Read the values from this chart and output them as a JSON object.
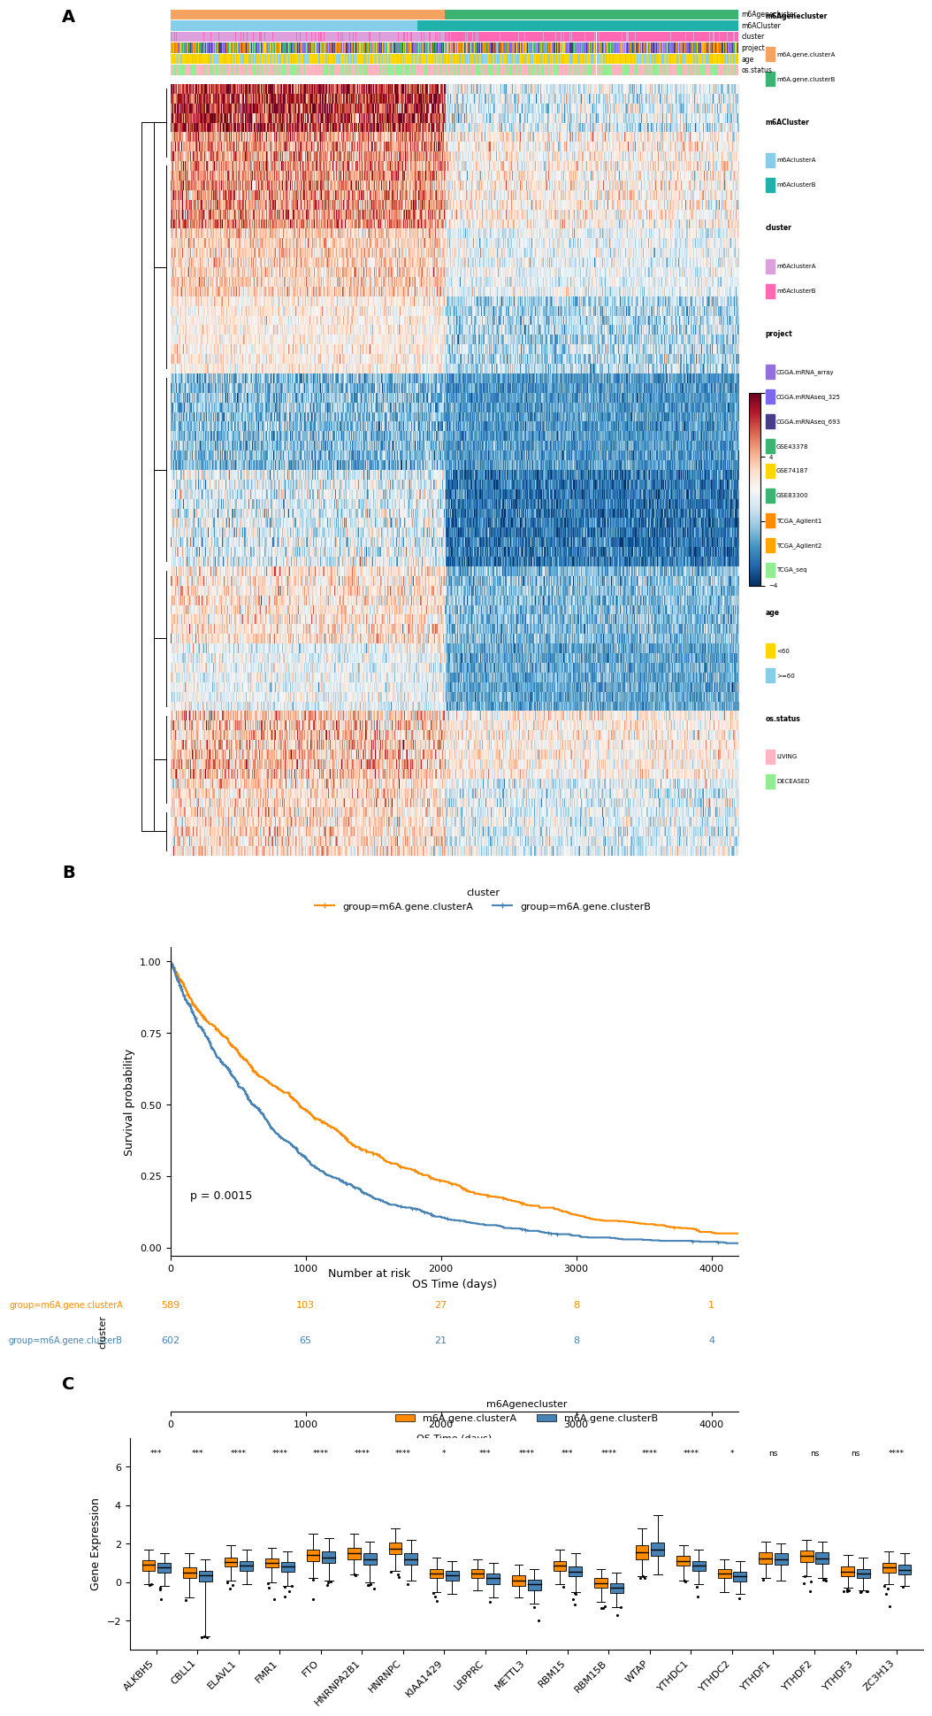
{
  "panel_A": {
    "title": "A",
    "n_genes": 80,
    "n_samplesA": 580,
    "n_samplesB": 620,
    "bar_colors": {
      "m6Agenecluster_A": "#F4A460",
      "m6Agenecluster_B": "#3CB371",
      "m6ACluster_A": "#87CEEB",
      "m6ACluster_B": "#20B2AA",
      "cluster_A": "#DDA0DD",
      "cluster_B": "#FF69B4",
      "age_young": "#FFD700",
      "age_old": "#87CEEB",
      "os_living": "#FFB6C1",
      "os_deceased": "#90EE90"
    },
    "proj_colors": [
      "#9370DB",
      "#7B68EE",
      "#483D8B",
      "#3CB371",
      "#FFD700",
      "#3CB371",
      "#FF8C00",
      "#FFA500",
      "#90EE90"
    ],
    "proj_weights": [
      0.15,
      0.12,
      0.15,
      0.08,
      0.08,
      0.08,
      0.12,
      0.12,
      0.1
    ],
    "legend_m6Agenecluster": [
      [
        "m6A.gene.clusterA",
        "#F4A460"
      ],
      [
        "m6A.gene.clusterB",
        "#3CB371"
      ]
    ],
    "legend_m6ACluster": [
      [
        "m6AclusterA",
        "#87CEEB"
      ],
      [
        "m6AclusterB",
        "#20B2AA"
      ]
    ],
    "legend_cluster": [
      [
        "m6AclusterA",
        "#DDA0DD"
      ],
      [
        "m6AclusterB",
        "#FF69B4"
      ]
    ],
    "legend_project": [
      [
        "CGGA.mRNA_array",
        "#9370DB"
      ],
      [
        "CGGA.mRNAseq_325",
        "#7B68EE"
      ],
      [
        "CGGA.mRNAseq_693",
        "#483D8B"
      ],
      [
        "GSE43378",
        "#3CB371"
      ],
      [
        "GSE74187",
        "#FFD700"
      ],
      [
        "GSE83300",
        "#3CB371"
      ],
      [
        "TCGA_Agilent1",
        "#FF8C00"
      ],
      [
        "TCGA_Agilent2",
        "#FFA500"
      ],
      [
        "TCGA_seq",
        "#90EE90"
      ]
    ],
    "legend_age": [
      [
        "<60",
        "#FFD700"
      ],
      [
        ">=60",
        "#87CEEB"
      ]
    ],
    "legend_os": [
      [
        "LIVING",
        "#FFB6C1"
      ],
      [
        "DECEASED",
        "#90EE90"
      ]
    ],
    "colorbar_min": -4,
    "colorbar_max": 8
  },
  "panel_B": {
    "title": "B",
    "clusterA_color": "#FF8C00",
    "clusterB_color": "#4682B4",
    "legend_title": "cluster",
    "legend_labels": [
      "group=m6A.gene.clusterA",
      "group=m6A.gene.clusterB"
    ],
    "pvalue": "p = 0.0015",
    "xlabel": "OS Time (days)",
    "ylabel": "Survival probability",
    "yticks": [
      0.0,
      0.25,
      0.5,
      0.75,
      1.0
    ],
    "xticks": [
      0,
      1000,
      2000,
      3000,
      4000
    ],
    "risk_table": {
      "title": "Number at risk",
      "xlabel": "OS Time (days)",
      "ylabel": "cluster",
      "groups": [
        "group=m6A.gene.clusterA",
        "group=m6A.gene.clusterB"
      ],
      "times": [
        0,
        1000,
        2000,
        3000,
        4000
      ],
      "numbers_A": [
        589,
        103,
        27,
        8,
        1
      ],
      "numbers_B": [
        602,
        65,
        21,
        8,
        4
      ]
    }
  },
  "panel_C": {
    "title": "C",
    "legend_title": "m6Agenecluster",
    "clusterA_color": "#FF8C00",
    "clusterB_color": "#4682B4",
    "clusterA_label": "m6A.gene.clusterA",
    "clusterB_label": "m6A.gene.clusterB",
    "ylabel": "Gene Expression",
    "genes": [
      "ALKBH5",
      "CBLL1",
      "ELAVL1",
      "FMR1",
      "FTO",
      "HNRNPA2B1",
      "HNRNPC",
      "KIAA1429",
      "LRPPRC",
      "METTL3",
      "RBM15",
      "RBM15B",
      "WTAP",
      "YTHDC1",
      "YTHDC2",
      "YTHDF1",
      "YTHDF2",
      "YTHDF3",
      "ZC3H13"
    ],
    "significance": [
      "***",
      "***",
      "****",
      "****",
      "****",
      "****",
      "****",
      "*",
      "***",
      "****",
      "***",
      "****",
      "****",
      "****",
      "*",
      "ns",
      "ns",
      "ns",
      "****"
    ],
    "ylim": [
      -3.5,
      7.5
    ],
    "yticks": [
      -2,
      0,
      2,
      4,
      6
    ],
    "boxplot_data": {
      "ALKBH5": {
        "A_med": 0.9,
        "A_q1": 0.6,
        "A_q3": 1.15,
        "A_lo": -0.1,
        "A_hi": 1.7,
        "B_med": 0.75,
        "B_q1": 0.5,
        "B_q3": 1.0,
        "B_lo": -0.2,
        "B_hi": 1.5
      },
      "CBLL1": {
        "A_med": 0.5,
        "A_q1": 0.2,
        "A_q3": 0.75,
        "A_lo": -0.8,
        "A_hi": 1.5,
        "B_med": 0.35,
        "B_q1": 0.05,
        "B_q3": 0.6,
        "B_lo": -2.8,
        "B_hi": 1.2
      },
      "ELAVL1": {
        "A_med": 1.05,
        "A_q1": 0.8,
        "A_q3": 1.3,
        "A_lo": 0.1,
        "A_hi": 1.9,
        "B_med": 0.85,
        "B_q1": 0.6,
        "B_q3": 1.1,
        "B_lo": -0.1,
        "B_hi": 1.7
      },
      "FMR1": {
        "A_med": 1.0,
        "A_q1": 0.75,
        "A_q3": 1.25,
        "A_lo": 0.0,
        "A_hi": 1.8,
        "B_med": 0.8,
        "B_q1": 0.55,
        "B_q3": 1.05,
        "B_lo": -0.2,
        "B_hi": 1.6
      },
      "FTO": {
        "A_med": 1.4,
        "A_q1": 1.1,
        "A_q3": 1.7,
        "A_lo": 0.2,
        "A_hi": 2.5,
        "B_med": 1.3,
        "B_q1": 1.0,
        "B_q3": 1.6,
        "B_lo": 0.1,
        "B_hi": 2.3
      },
      "HNRNPA2B1": {
        "A_med": 1.5,
        "A_q1": 1.2,
        "A_q3": 1.8,
        "A_lo": 0.4,
        "A_hi": 2.5,
        "B_med": 1.2,
        "B_q1": 0.9,
        "B_q3": 1.5,
        "B_lo": 0.0,
        "B_hi": 2.1
      },
      "HNRNPC": {
        "A_med": 1.75,
        "A_q1": 1.45,
        "A_q3": 2.05,
        "A_lo": 0.6,
        "A_hi": 2.8,
        "B_med": 1.2,
        "B_q1": 0.9,
        "B_q3": 1.5,
        "B_lo": 0.1,
        "B_hi": 2.2
      },
      "KIAA1429": {
        "A_med": 0.45,
        "A_q1": 0.2,
        "A_q3": 0.7,
        "A_lo": -0.5,
        "A_hi": 1.3,
        "B_med": 0.35,
        "B_q1": 0.1,
        "B_q3": 0.6,
        "B_lo": -0.6,
        "B_hi": 1.1
      },
      "LRPPRC": {
        "A_med": 0.45,
        "A_q1": 0.2,
        "A_q3": 0.7,
        "A_lo": -0.4,
        "A_hi": 1.2,
        "B_med": 0.2,
        "B_q1": -0.1,
        "B_q3": 0.45,
        "B_lo": -0.8,
        "B_hi": 1.0
      },
      "METTL3": {
        "A_med": 0.1,
        "A_q1": -0.2,
        "A_q3": 0.35,
        "A_lo": -0.8,
        "A_hi": 0.9,
        "B_med": -0.1,
        "B_q1": -0.4,
        "B_q3": 0.15,
        "B_lo": -1.1,
        "B_hi": 0.7
      },
      "RBM15": {
        "A_med": 0.85,
        "A_q1": 0.6,
        "A_q3": 1.1,
        "A_lo": -0.1,
        "A_hi": 1.7,
        "B_med": 0.55,
        "B_q1": 0.3,
        "B_q3": 0.8,
        "B_lo": -0.5,
        "B_hi": 1.5
      },
      "RBM15B": {
        "A_med": -0.05,
        "A_q1": -0.3,
        "A_q3": 0.2,
        "A_lo": -1.0,
        "A_hi": 0.7,
        "B_med": -0.3,
        "B_q1": -0.55,
        "B_q3": -0.05,
        "B_lo": -1.3,
        "B_hi": 0.5
      },
      "WTAP": {
        "A_med": 1.55,
        "A_q1": 1.2,
        "A_q3": 1.9,
        "A_lo": 0.3,
        "A_hi": 2.8,
        "B_med": 1.7,
        "B_q1": 1.35,
        "B_q3": 2.05,
        "B_lo": 0.4,
        "B_hi": 3.5
      },
      "YTHDC1": {
        "A_med": 1.1,
        "A_q1": 0.85,
        "A_q3": 1.35,
        "A_lo": 0.1,
        "A_hi": 1.9,
        "B_med": 0.85,
        "B_q1": 0.6,
        "B_q3": 1.1,
        "B_lo": -0.1,
        "B_hi": 1.7
      },
      "YTHDC2": {
        "A_med": 0.45,
        "A_q1": 0.2,
        "A_q3": 0.7,
        "A_lo": -0.5,
        "A_hi": 1.2,
        "B_med": 0.3,
        "B_q1": 0.05,
        "B_q3": 0.55,
        "B_lo": -0.6,
        "B_hi": 1.1
      },
      "YTHDF1": {
        "A_med": 1.25,
        "A_q1": 0.95,
        "A_q3": 1.55,
        "A_lo": 0.2,
        "A_hi": 2.1,
        "B_med": 1.2,
        "B_q1": 0.9,
        "B_q3": 1.5,
        "B_lo": 0.1,
        "B_hi": 2.0
      },
      "YTHDF2": {
        "A_med": 1.35,
        "A_q1": 1.05,
        "A_q3": 1.65,
        "A_lo": 0.3,
        "A_hi": 2.2,
        "B_med": 1.25,
        "B_q1": 0.95,
        "B_q3": 1.55,
        "B_lo": 0.2,
        "B_hi": 2.1
      },
      "YTHDF3": {
        "A_med": 0.55,
        "A_q1": 0.3,
        "A_q3": 0.8,
        "A_lo": -0.3,
        "A_hi": 1.4,
        "B_med": 0.45,
        "B_q1": 0.2,
        "B_q3": 0.7,
        "B_lo": -0.4,
        "B_hi": 1.3
      },
      "ZC3H13": {
        "A_med": 0.75,
        "A_q1": 0.5,
        "A_q3": 1.0,
        "A_lo": -0.1,
        "A_hi": 1.6,
        "B_med": 0.65,
        "B_q1": 0.4,
        "B_q3": 0.9,
        "B_lo": -0.2,
        "B_hi": 1.5
      }
    }
  },
  "background_color": "#FFFFFF"
}
